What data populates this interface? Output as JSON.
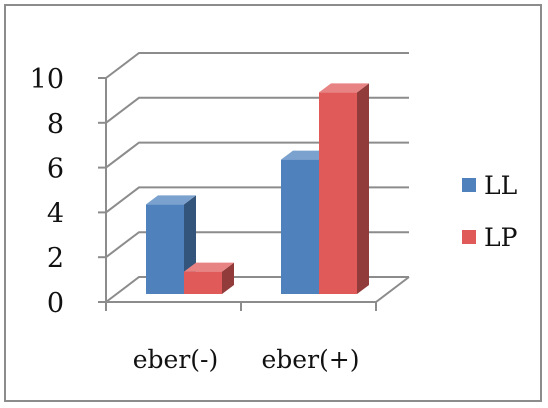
{
  "chart_data": {
    "type": "bar",
    "style": "3d-clustered-column",
    "categories": [
      "eber(-)",
      "eber(+)"
    ],
    "series": [
      {
        "name": "LL",
        "values": [
          4,
          6
        ],
        "color": "#4f81bd"
      },
      {
        "name": "LP",
        "values": [
          1,
          9
        ],
        "color": "#e05a5a"
      }
    ],
    "title": "",
    "xlabel": "",
    "ylabel": "",
    "ylim": [
      0,
      10
    ],
    "yticks": [
      0,
      2,
      4,
      6,
      8,
      10
    ],
    "grid": true,
    "legend": "right"
  }
}
